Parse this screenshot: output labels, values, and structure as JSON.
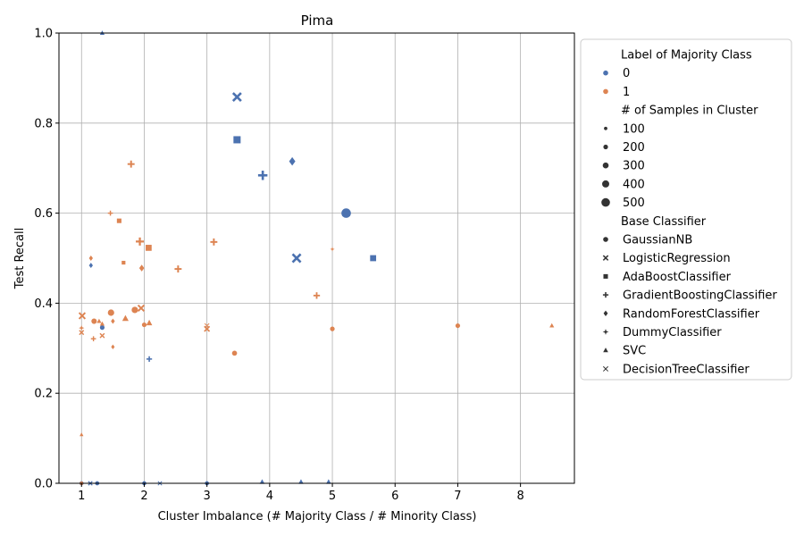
{
  "chart_data": {
    "type": "scatter",
    "title": "Pima",
    "xlabel": "Cluster Imbalance (# Majority Class / # Minority Class)",
    "ylabel": "Test Recall",
    "xlim": [
      0.64,
      8.86
    ],
    "ylim": [
      0,
      1.0
    ],
    "xticks": [
      1,
      2,
      3,
      4,
      5,
      6,
      7,
      8
    ],
    "xtick_labels": [
      "1",
      "2",
      "3",
      "4",
      "5",
      "6",
      "7",
      "8"
    ],
    "yticks": [
      0.0,
      0.2,
      0.4,
      0.6,
      0.8,
      1.0
    ],
    "ytick_labels": [
      "0.0",
      "0.2",
      "0.4",
      "0.6",
      "0.8",
      "1.0"
    ],
    "grid": true,
    "legend_placement": "outside-right",
    "colors": {
      "0": "#4c72b0",
      "1": "#dd8452"
    },
    "legend": {
      "hue_title": "Label of Majority Class",
      "hue": [
        {
          "label": "0",
          "color": "#4c72b0"
        },
        {
          "label": "1",
          "color": "#dd8452"
        }
      ],
      "size_title": "# of Samples in Cluster",
      "sizes": [
        "100",
        "200",
        "300",
        "400",
        "500"
      ],
      "style_title": "Base Classifier",
      "styles": [
        {
          "label": "GaussianNB",
          "marker": "circle"
        },
        {
          "label": "LogisticRegression",
          "marker": "x"
        },
        {
          "label": "AdaBoostClassifier",
          "marker": "square"
        },
        {
          "label": "GradientBoostingClassifier",
          "marker": "plus"
        },
        {
          "label": "RandomForestClassifier",
          "marker": "diamond"
        },
        {
          "label": "DummyClassifier",
          "marker": "star"
        },
        {
          "label": "SVC",
          "marker": "triangle"
        },
        {
          "label": "DecisionTreeClassifier",
          "marker": "xthin"
        }
      ]
    },
    "points": [
      {
        "x": 3.48,
        "y": 0.858,
        "label": "0",
        "size": 350,
        "marker": "x"
      },
      {
        "x": 3.48,
        "y": 0.763,
        "label": "0",
        "size": 300,
        "marker": "square"
      },
      {
        "x": 4.36,
        "y": 0.715,
        "label": "0",
        "size": 250,
        "marker": "diamond"
      },
      {
        "x": 3.89,
        "y": 0.684,
        "label": "0",
        "size": 350,
        "marker": "plus"
      },
      {
        "x": 5.22,
        "y": 0.6,
        "label": "0",
        "size": 450,
        "marker": "circle"
      },
      {
        "x": 4.43,
        "y": 0.5,
        "label": "0",
        "size": 350,
        "marker": "x"
      },
      {
        "x": 5.65,
        "y": 0.5,
        "label": "0",
        "size": 200,
        "marker": "square"
      },
      {
        "x": 1.15,
        "y": 0.484,
        "label": "0",
        "size": 80,
        "marker": "diamond"
      },
      {
        "x": 1.33,
        "y": 0.346,
        "label": "0",
        "size": 80,
        "marker": "circle"
      },
      {
        "x": 2.08,
        "y": 0.276,
        "label": "0",
        "size": 100,
        "marker": "plus"
      },
      {
        "x": 1.33,
        "y": 1.0,
        "label": "0",
        "size": 80,
        "marker": "triangle"
      },
      {
        "x": 1.0,
        "y": 0.0,
        "label": "0",
        "size": 60,
        "marker": "circle"
      },
      {
        "x": 1.14,
        "y": 0.0,
        "label": "0",
        "size": 60,
        "marker": "x"
      },
      {
        "x": 1.25,
        "y": 0.0,
        "label": "0",
        "size": 60,
        "marker": "circle"
      },
      {
        "x": 2.0,
        "y": 0.0,
        "label": "0",
        "size": 60,
        "marker": "circle"
      },
      {
        "x": 2.25,
        "y": 0.0,
        "label": "0",
        "size": 60,
        "marker": "xthin"
      },
      {
        "x": 3.0,
        "y": 0.0,
        "label": "0",
        "size": 60,
        "marker": "circle"
      },
      {
        "x": 3.88,
        "y": 0.003,
        "label": "0",
        "size": 100,
        "marker": "triangle"
      },
      {
        "x": 4.5,
        "y": 0.003,
        "label": "0",
        "size": 100,
        "marker": "triangle"
      },
      {
        "x": 4.94,
        "y": 0.003,
        "label": "0",
        "size": 100,
        "marker": "triangle"
      },
      {
        "x": 1.79,
        "y": 0.709,
        "label": "1",
        "size": 180,
        "marker": "plus"
      },
      {
        "x": 1.46,
        "y": 0.6,
        "label": "1",
        "size": 80,
        "marker": "plus"
      },
      {
        "x": 1.6,
        "y": 0.583,
        "label": "1",
        "size": 100,
        "marker": "square"
      },
      {
        "x": 1.93,
        "y": 0.537,
        "label": "1",
        "size": 250,
        "marker": "plus"
      },
      {
        "x": 3.11,
        "y": 0.536,
        "label": "1",
        "size": 180,
        "marker": "plus"
      },
      {
        "x": 2.07,
        "y": 0.523,
        "label": "1",
        "size": 200,
        "marker": "square"
      },
      {
        "x": 5.0,
        "y": 0.52,
        "label": "1",
        "size": 50,
        "marker": "star"
      },
      {
        "x": 1.15,
        "y": 0.5,
        "label": "1",
        "size": 80,
        "marker": "diamond"
      },
      {
        "x": 1.67,
        "y": 0.49,
        "label": "1",
        "size": 60,
        "marker": "square"
      },
      {
        "x": 1.96,
        "y": 0.478,
        "label": "1",
        "size": 150,
        "marker": "diamond"
      },
      {
        "x": 2.54,
        "y": 0.476,
        "label": "1",
        "size": 180,
        "marker": "plus"
      },
      {
        "x": 4.75,
        "y": 0.417,
        "label": "1",
        "size": 150,
        "marker": "plus"
      },
      {
        "x": 1.95,
        "y": 0.389,
        "label": "1",
        "size": 180,
        "marker": "x"
      },
      {
        "x": 1.85,
        "y": 0.385,
        "label": "1",
        "size": 180,
        "marker": "circle"
      },
      {
        "x": 1.47,
        "y": 0.379,
        "label": "1",
        "size": 180,
        "marker": "circle"
      },
      {
        "x": 1.01,
        "y": 0.372,
        "label": "1",
        "size": 180,
        "marker": "x"
      },
      {
        "x": 1.7,
        "y": 0.366,
        "label": "1",
        "size": 180,
        "marker": "triangle"
      },
      {
        "x": 1.2,
        "y": 0.36,
        "label": "1",
        "size": 120,
        "marker": "circle"
      },
      {
        "x": 1.28,
        "y": 0.36,
        "label": "1",
        "size": 80,
        "marker": "triangle"
      },
      {
        "x": 1.5,
        "y": 0.36,
        "label": "1",
        "size": 80,
        "marker": "diamond"
      },
      {
        "x": 2.08,
        "y": 0.356,
        "label": "1",
        "size": 150,
        "marker": "triangle"
      },
      {
        "x": 1.33,
        "y": 0.354,
        "label": "1",
        "size": 80,
        "marker": "triangle"
      },
      {
        "x": 2.0,
        "y": 0.352,
        "label": "1",
        "size": 80,
        "marker": "circle"
      },
      {
        "x": 3.0,
        "y": 0.35,
        "label": "1",
        "size": 80,
        "marker": "xthin"
      },
      {
        "x": 7.0,
        "y": 0.35,
        "label": "1",
        "size": 80,
        "marker": "circle"
      },
      {
        "x": 8.5,
        "y": 0.35,
        "label": "1",
        "size": 80,
        "marker": "triangle"
      },
      {
        "x": 1.0,
        "y": 0.345,
        "label": "1",
        "size": 80,
        "marker": "star"
      },
      {
        "x": 3.0,
        "y": 0.343,
        "label": "1",
        "size": 120,
        "marker": "x"
      },
      {
        "x": 5.0,
        "y": 0.343,
        "label": "1",
        "size": 80,
        "marker": "circle"
      },
      {
        "x": 1.0,
        "y": 0.335,
        "label": "1",
        "size": 80,
        "marker": "x"
      },
      {
        "x": 1.33,
        "y": 0.328,
        "label": "1",
        "size": 80,
        "marker": "x"
      },
      {
        "x": 1.19,
        "y": 0.321,
        "label": "1",
        "size": 80,
        "marker": "plus"
      },
      {
        "x": 1.5,
        "y": 0.303,
        "label": "1",
        "size": 60,
        "marker": "diamond"
      },
      {
        "x": 3.44,
        "y": 0.289,
        "label": "1",
        "size": 100,
        "marker": "circle"
      },
      {
        "x": 1.0,
        "y": 0.108,
        "label": "1",
        "size": 50,
        "marker": "triangle"
      },
      {
        "x": 1.0,
        "y": 0.0,
        "label": "1",
        "size": 40,
        "marker": "circle"
      }
    ]
  }
}
